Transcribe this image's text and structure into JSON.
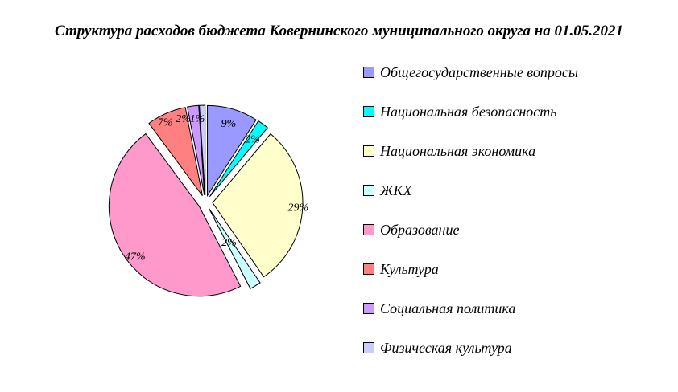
{
  "header": {
    "title": "Структура расходов бюджета Ковернинского муниципального округа на 01.05.2021"
  },
  "chart_data": {
    "type": "pie",
    "title": "Структура расходов бюджета Ковернинского муниципального округа на 01.05.2021",
    "categories": [
      "Общегосударственные вопросы",
      "Национальная безопасность",
      "Национальная экономика",
      "ЖКХ",
      "Образование",
      "Культура",
      "Социальная политика",
      "Физическая культура"
    ],
    "values": [
      9,
      2,
      29,
      2,
      47,
      7,
      2,
      1
    ],
    "labels": [
      "9%",
      "2%",
      "29%",
      "2%",
      "47%",
      "7%",
      "2%",
      "1%"
    ],
    "colors": [
      "#9999FF",
      "#00FFFF",
      "#FFFFCC",
      "#CCFFFF",
      "#FF99CC",
      "#FF8080",
      "#CC99FF",
      "#CCCCFF"
    ],
    "outline_color": "#000000",
    "background_color": "#FFFFFF",
    "legend_position": "right",
    "start_angle_deg": 0,
    "clockwise": true,
    "exploded": true
  }
}
